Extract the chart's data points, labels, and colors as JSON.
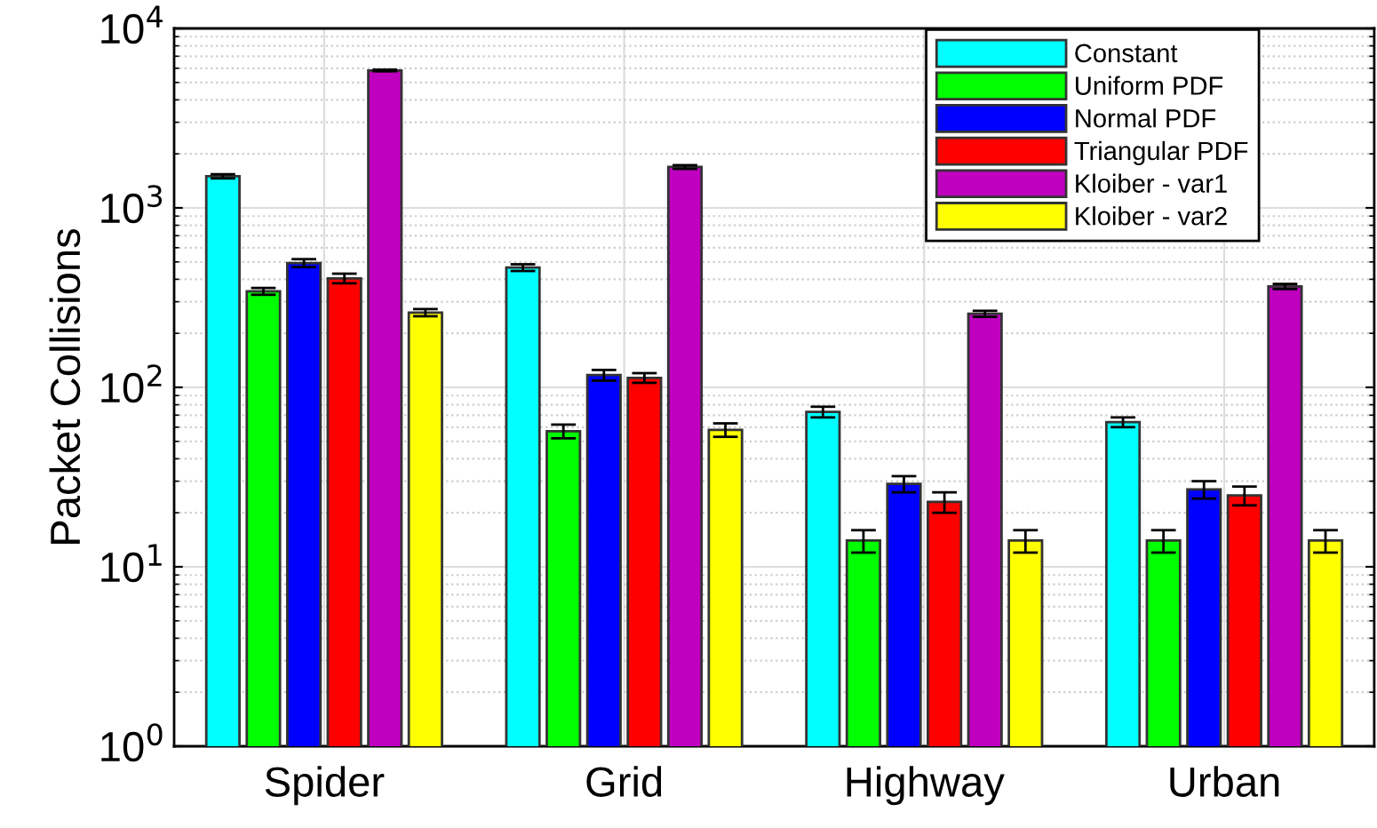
{
  "chart_data": {
    "type": "bar",
    "ylabel": "Packet Collisions",
    "categories": [
      "Spider",
      "Grid",
      "Highway",
      "Urban"
    ],
    "log": "y",
    "ylim": [
      1,
      10000
    ],
    "yticks": [
      {
        "value": 1,
        "label": "10$^{0}$"
      },
      {
        "value": 10,
        "label": "10$^{1}$"
      },
      {
        "value": 100,
        "label": "10$^{2}$"
      },
      {
        "value": 1000,
        "label": "10$^{3}$"
      },
      {
        "value": 10000,
        "label": "10$^{4}$"
      }
    ],
    "grid": true,
    "legend": "top right",
    "series": [
      {
        "name": "Constant",
        "color": "#00ffff",
        "values": [
          1500,
          465,
          73,
          64
        ],
        "errors": [
          40,
          20,
          5,
          4
        ]
      },
      {
        "name": "Uniform PDF",
        "color": "#00ff00",
        "values": [
          343,
          57,
          14,
          14
        ],
        "errors": [
          15,
          5,
          2,
          2
        ]
      },
      {
        "name": "Normal PDF",
        "color": "#0000ff",
        "values": [
          493,
          117,
          29,
          27
        ],
        "errors": [
          25,
          8,
          3,
          3
        ]
      },
      {
        "name": "Triangular PDF",
        "color": "#ff0000",
        "values": [
          405,
          113,
          23,
          25
        ],
        "errors": [
          25,
          7,
          3,
          3
        ]
      },
      {
        "name": "Kloiber - var1",
        "color": "#bf00bf",
        "values": [
          5830,
          1690,
          257,
          365
        ],
        "errors": [
          60,
          40,
          10,
          12
        ]
      },
      {
        "name": "Kloiber - var2",
        "color": "#ffff00",
        "values": [
          261,
          58,
          14,
          14
        ],
        "errors": [
          12,
          5,
          2,
          2
        ]
      }
    ]
  }
}
